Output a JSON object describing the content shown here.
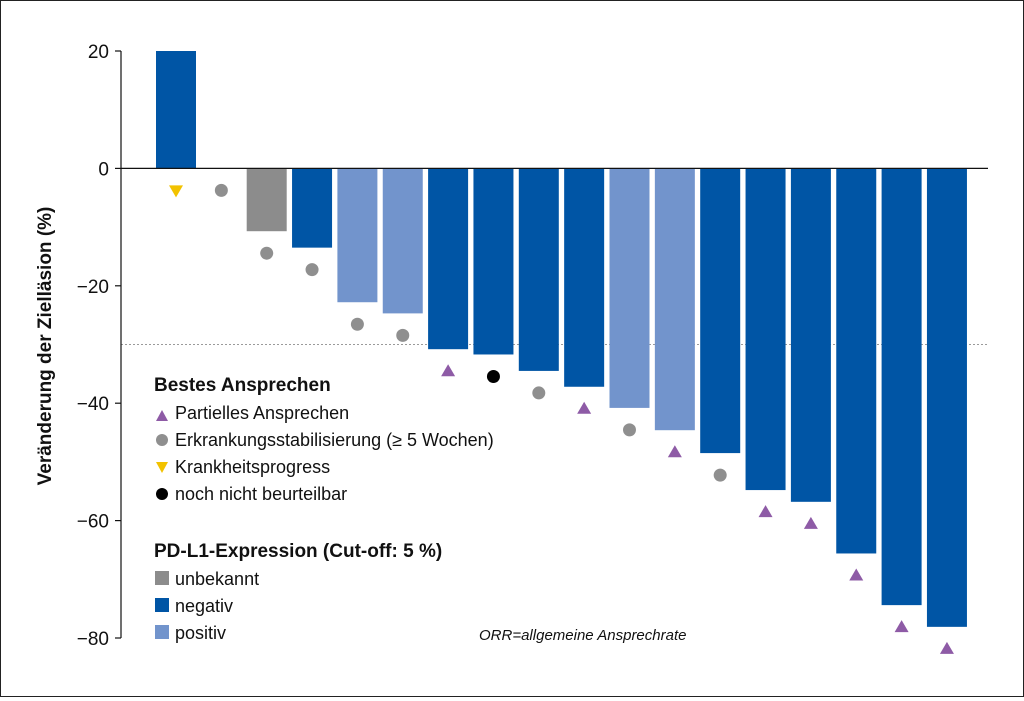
{
  "chart_data": {
    "type": "bar",
    "ylabel": "Veränderung der Zielläsion (%)",
    "ylim": [
      -80,
      20
    ],
    "yticks": [
      20,
      0,
      -20,
      -40,
      -60,
      -80
    ],
    "reference_line": -30,
    "footnote": "ORR=allgemeine Ansprechrate",
    "bars": [
      {
        "value": 20,
        "expression": "negativ",
        "response": "Krankheitsprogress"
      },
      {
        "value": 0,
        "expression": "none",
        "response": "Erkrankungsstabilisierung (≥ 5 Wochen)"
      },
      {
        "value": -10.7,
        "expression": "unbekannt",
        "response": "Erkrankungsstabilisierung (≥ 5 Wochen)"
      },
      {
        "value": -13.5,
        "expression": "negativ",
        "response": "Erkrankungsstabilisierung (≥ 5 Wochen)"
      },
      {
        "value": -22.8,
        "expression": "positiv",
        "response": "Erkrankungsstabilisierung (≥ 5 Wochen)"
      },
      {
        "value": -24.7,
        "expression": "positiv",
        "response": "Erkrankungsstabilisierung (≥ 5 Wochen)"
      },
      {
        "value": -30.8,
        "expression": "negativ",
        "response": "Partielles Ansprechen"
      },
      {
        "value": -31.7,
        "expression": "negativ",
        "response": "noch nicht beurteilbar"
      },
      {
        "value": -34.5,
        "expression": "negativ",
        "response": "Erkrankungsstabilisierung (≥ 5 Wochen)"
      },
      {
        "value": -37.2,
        "expression": "negativ",
        "response": "Partielles Ansprechen"
      },
      {
        "value": -40.8,
        "expression": "positiv",
        "response": "Erkrankungsstabilisierung (≥ 5 Wochen)"
      },
      {
        "value": -44.6,
        "expression": "positiv",
        "response": "Partielles Ansprechen"
      },
      {
        "value": -48.5,
        "expression": "negativ",
        "response": "Erkrankungsstabilisierung (≥ 5 Wochen)"
      },
      {
        "value": -54.8,
        "expression": "negativ",
        "response": "Partielles Ansprechen"
      },
      {
        "value": -56.8,
        "expression": "negativ",
        "response": "Partielles Ansprechen"
      },
      {
        "value": -65.6,
        "expression": "negativ",
        "response": "Partielles Ansprechen"
      },
      {
        "value": -74.4,
        "expression": "negativ",
        "response": "Partielles Ansprechen"
      },
      {
        "value": -78.1,
        "expression": "negativ",
        "response": "Partielles Ansprechen"
      }
    ],
    "legend": {
      "response_title": "Bestes Ansprechen",
      "response_items": [
        {
          "label": "Partielles Ansprechen",
          "marker": "triangle-up",
          "color": "#8e5ba6"
        },
        {
          "label": "Erkrankungsstabilisierung (≥ 5 Wochen)",
          "marker": "circle",
          "color": "#8f8f8f"
        },
        {
          "label": "Krankheitsprogress",
          "marker": "triangle-down",
          "color": "#f2c200"
        },
        {
          "label": "noch nicht beurteilbar",
          "marker": "circle",
          "color": "#000000"
        }
      ],
      "expression_title": "PD-L1-Expression (Cut-off: 5 %)",
      "expression_items": [
        {
          "label": "unbekannt",
          "color": "#8c8c8c"
        },
        {
          "label": "negativ",
          "color": "#0055a5"
        },
        {
          "label": "positiv",
          "color": "#7294cc"
        }
      ]
    }
  }
}
